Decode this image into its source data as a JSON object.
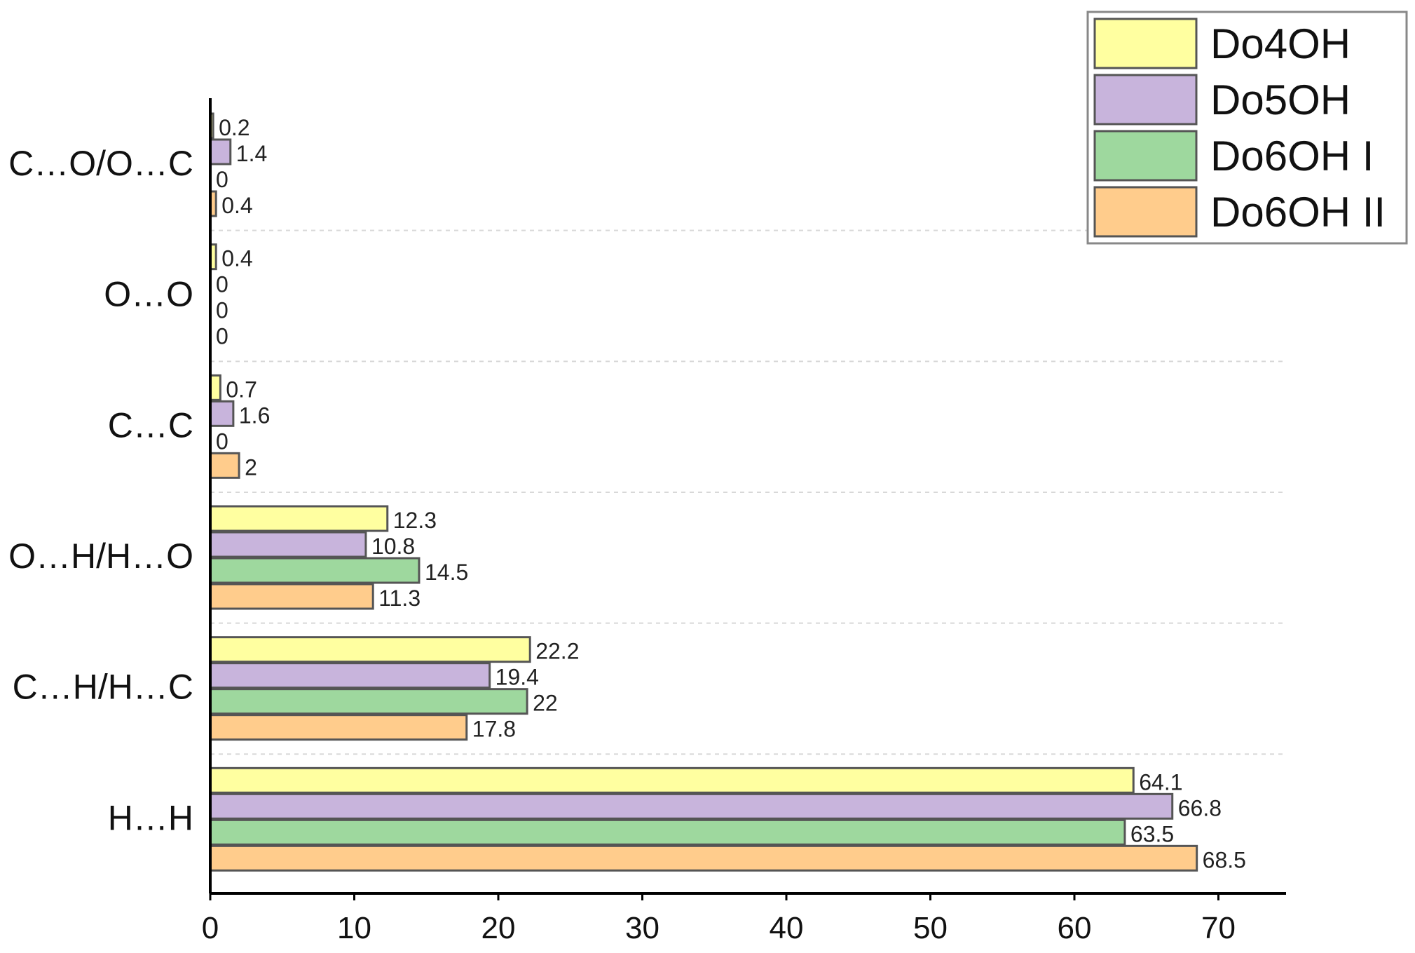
{
  "chart_data": {
    "type": "bar",
    "orientation": "horizontal",
    "title": "",
    "xlabel": "",
    "ylabel": "",
    "xlim": [
      0,
      73
    ],
    "xticks": [
      0,
      10,
      20,
      30,
      40,
      50,
      60,
      70
    ],
    "grid": true,
    "legend_position": "top-right",
    "categories": [
      "C…O/O…C",
      "O…O",
      "C…C",
      "O…H/H…O",
      "C…H/H…C",
      "H…H"
    ],
    "series": [
      {
        "name": "Do4OH",
        "color": "#ffffa0",
        "values": [
          0.2,
          0.4,
          0.7,
          12.3,
          22.2,
          64.1
        ]
      },
      {
        "name": "Do5OH",
        "color": "#c8b4dc",
        "values": [
          1.4,
          0,
          1.6,
          10.8,
          19.4,
          66.8
        ]
      },
      {
        "name": "Do6OH I",
        "color": "#9ed89e",
        "values": [
          0,
          0,
          0,
          14.5,
          22,
          63.5
        ]
      },
      {
        "name": "Do6OH II",
        "color": "#ffcc8c",
        "values": [
          0.4,
          0,
          2,
          11.3,
          17.8,
          68.5
        ]
      }
    ]
  }
}
